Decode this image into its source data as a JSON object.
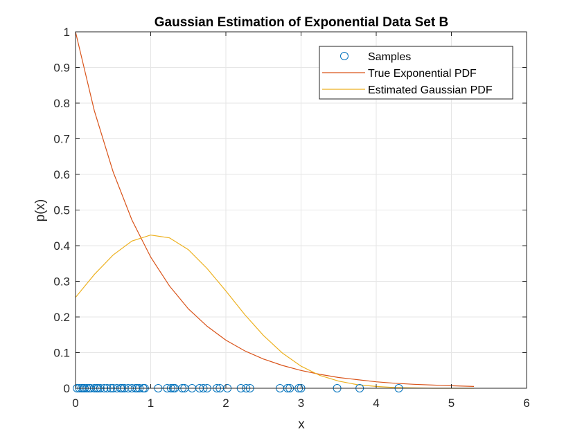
{
  "chart_data": {
    "type": "line",
    "title": "Gaussian Estimation of Exponential Data Set B",
    "xlabel": "x",
    "ylabel": "p(x)",
    "xlim": [
      0,
      6
    ],
    "ylim": [
      0,
      1
    ],
    "xticks": [
      0,
      1,
      2,
      3,
      4,
      5,
      6
    ],
    "yticks": [
      0,
      0.1,
      0.2,
      0.3,
      0.4,
      0.5,
      0.6,
      0.7,
      0.8,
      0.9,
      1
    ],
    "grid": true,
    "legend_location": "top-right",
    "series": [
      {
        "name": "Samples",
        "kind": "markers",
        "marker": "circle",
        "color": "#0072BD",
        "x": [
          0.02,
          0.05,
          0.08,
          0.1,
          0.12,
          0.15,
          0.18,
          0.2,
          0.25,
          0.28,
          0.3,
          0.33,
          0.38,
          0.42,
          0.47,
          0.5,
          0.55,
          0.6,
          0.62,
          0.65,
          0.7,
          0.75,
          0.8,
          0.82,
          0.85,
          0.9,
          0.92,
          1.1,
          1.22,
          1.27,
          1.3,
          1.32,
          1.42,
          1.45,
          1.55,
          1.65,
          1.7,
          1.75,
          1.88,
          1.92,
          2.02,
          2.2,
          2.27,
          2.32,
          2.72,
          2.82,
          2.85,
          2.97,
          3.0,
          3.48,
          3.78,
          4.3
        ],
        "y": [
          0,
          0,
          0,
          0,
          0,
          0,
          0,
          0,
          0,
          0,
          0,
          0,
          0,
          0,
          0,
          0,
          0,
          0,
          0,
          0,
          0,
          0,
          0,
          0,
          0,
          0,
          0,
          0,
          0,
          0,
          0,
          0,
          0,
          0,
          0,
          0,
          0,
          0,
          0,
          0,
          0,
          0,
          0,
          0,
          0,
          0,
          0,
          0,
          0,
          0,
          0,
          0
        ]
      },
      {
        "name": "True Exponential PDF",
        "kind": "line",
        "color": "#D95319",
        "x": [
          0,
          0.25,
          0.5,
          0.75,
          1.0,
          1.25,
          1.5,
          1.75,
          2.0,
          2.25,
          2.5,
          2.75,
          3.0,
          3.25,
          3.5,
          3.75,
          4.0,
          4.25,
          4.5,
          4.75,
          5.0,
          5.3
        ],
        "y": [
          1.0,
          0.779,
          0.607,
          0.472,
          0.368,
          0.287,
          0.223,
          0.174,
          0.135,
          0.105,
          0.082,
          0.064,
          0.05,
          0.039,
          0.03,
          0.024,
          0.018,
          0.014,
          0.011,
          0.009,
          0.007,
          0.005
        ]
      },
      {
        "name": "Estimated Gaussian PDF",
        "kind": "line",
        "color": "#EDB120",
        "x": [
          0,
          0.25,
          0.5,
          0.75,
          1.0,
          1.25,
          1.5,
          1.75,
          2.0,
          2.25,
          2.5,
          2.75,
          3.0,
          3.25,
          3.5,
          3.75,
          4.0,
          4.25,
          4.5,
          4.75,
          5.0,
          5.3
        ],
        "y": [
          0.255,
          0.319,
          0.374,
          0.413,
          0.43,
          0.422,
          0.389,
          0.336,
          0.273,
          0.207,
          0.148,
          0.099,
          0.062,
          0.036,
          0.02,
          0.01,
          0.005,
          0.002,
          0.001,
          0.0,
          0.0,
          0.0
        ]
      }
    ]
  }
}
